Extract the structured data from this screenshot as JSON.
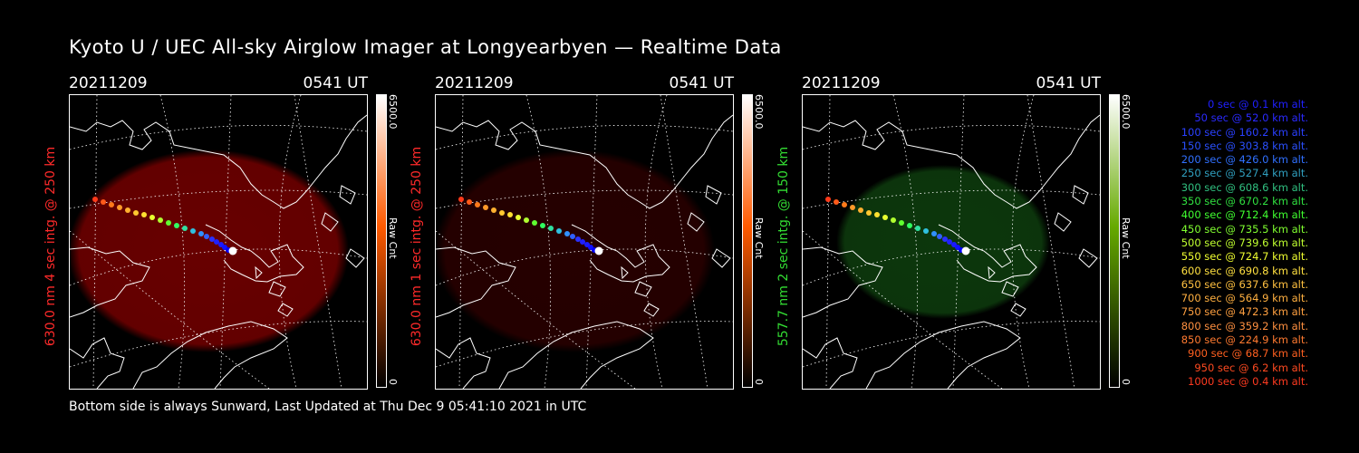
{
  "title": "Kyoto U / UEC All-sky Airglow Imager at Longyearbyen — Realtime Data",
  "footer": "Bottom side is always Sunward, Last Updated at Thu Dec  9 05:41:10 2021 in UTC",
  "panels": [
    {
      "date": "20211209",
      "time": "0541 UT",
      "label": "630.0 nm 4 sec intg. @ 250 km",
      "label_color": "#ff2a2a",
      "cbar_max": "6500.0",
      "cbar_unit": "Raw Cnt",
      "cbar_min": "0",
      "glow_color": "#7a0000",
      "glow_opacity": 0.85,
      "bar_top": "#ffffff",
      "bar_mid": "#ff5a00",
      "bar_bottom": "#000000"
    },
    {
      "date": "20211209",
      "time": "0541 UT",
      "label": "630.0 nm 1 sec intg. @ 250 km",
      "label_color": "#ff2a2a",
      "cbar_max": "6500.0",
      "cbar_unit": "Raw Cnt",
      "cbar_min": "0",
      "glow_color": "#2a0000",
      "glow_opacity": 0.9,
      "bar_top": "#ffffff",
      "bar_mid": "#ff5a00",
      "bar_bottom": "#000000"
    },
    {
      "date": "20211209",
      "time": "0541 UT",
      "label": "557.7 nm 2 sec intg. @ 150 km",
      "label_color": "#33dd33",
      "cbar_max": "6500.0",
      "cbar_unit": "Raw Cnt",
      "cbar_min": "0",
      "glow_color": "#0d3a0d",
      "glow_opacity": 0.95,
      "bar_top": "#ffffff",
      "bar_mid": "#66aa00",
      "bar_bottom": "#000000"
    }
  ],
  "trajectory_colors": [
    "#ff3a1a",
    "#ff5a1a",
    "#ff7a1a",
    "#ff9a2a",
    "#ffb030",
    "#ffc830",
    "#ffe030",
    "#e8ff30",
    "#b0ff30",
    "#60ff30",
    "#30ff60",
    "#30e0a0",
    "#30c0e0",
    "#3090ff",
    "#3060ff",
    "#2a30ff",
    "#2020ff",
    "#1a1aff",
    "#1010ff",
    "#0000ff",
    "#ffffff"
  ],
  "legend": [
    {
      "text": "0 sec @   0.1 km alt.",
      "color": "#2020ff"
    },
    {
      "text": "50 sec @  52.0 km alt.",
      "color": "#2a2aff"
    },
    {
      "text": "100 sec @ 160.2 km alt.",
      "color": "#2a40ff"
    },
    {
      "text": "150 sec @ 303.8 km alt.",
      "color": "#2a50ff"
    },
    {
      "text": "200 sec @ 426.0 km alt.",
      "color": "#3070ff"
    },
    {
      "text": "250 sec @ 527.4 km alt.",
      "color": "#30a0c0"
    },
    {
      "text": "300 sec @ 608.6 km alt.",
      "color": "#30c080"
    },
    {
      "text": "350 sec @ 670.2 km alt.",
      "color": "#30e040"
    },
    {
      "text": "400 sec @ 712.4 km alt.",
      "color": "#40ff30"
    },
    {
      "text": "450 sec @ 735.5 km alt.",
      "color": "#80ff30"
    },
    {
      "text": "500 sec @ 739.6 km alt.",
      "color": "#c0ff30"
    },
    {
      "text": "550 sec @ 724.7 km alt.",
      "color": "#f0ff30"
    },
    {
      "text": "600 sec @ 690.8 km alt.",
      "color": "#ffe040"
    },
    {
      "text": "650 sec @ 637.6 km alt.",
      "color": "#ffc040"
    },
    {
      "text": "700 sec @ 564.9 km alt.",
      "color": "#ffb040"
    },
    {
      "text": "750 sec @ 472.3 km alt.",
      "color": "#ffa040"
    },
    {
      "text": "800 sec @ 359.2 km alt.",
      "color": "#ff9040"
    },
    {
      "text": "850 sec @ 224.9 km alt.",
      "color": "#ff7a30"
    },
    {
      "text": "900 sec @  68.7 km alt.",
      "color": "#ff6020"
    },
    {
      "text": "950 sec @   6.2 km alt.",
      "color": "#ff4a20"
    },
    {
      "text": "1000 sec @   0.4 km alt.",
      "color": "#ff3a20"
    }
  ]
}
